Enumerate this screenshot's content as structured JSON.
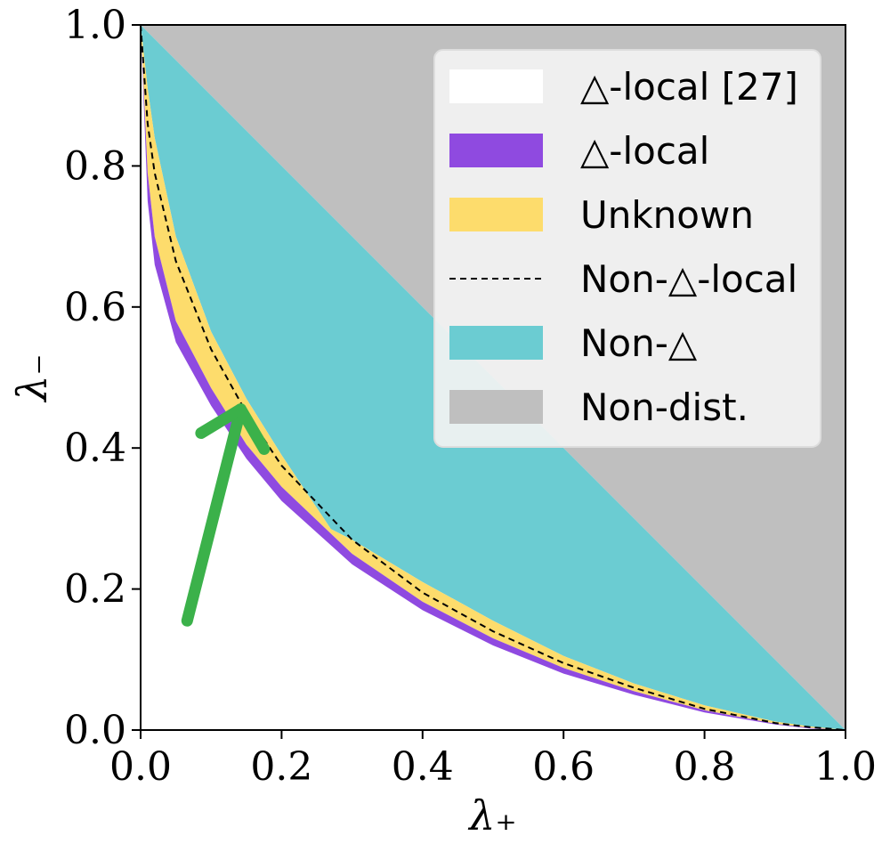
{
  "chart_data": {
    "type": "area",
    "xlabel": "λ₊",
    "ylabel": "λ₋",
    "xlim": [
      0,
      1
    ],
    "ylim": [
      0,
      1
    ],
    "xticks": [
      "0.0",
      "0.2",
      "0.4",
      "0.6",
      "0.8",
      "1.0"
    ],
    "yticks": [
      "0.0",
      "0.2",
      "0.4",
      "0.6",
      "0.8",
      "1.0"
    ],
    "legend_position": "top-right",
    "regions": {
      "purple_lower_boundary": [
        [
          0,
          1.0
        ],
        [
          0.01,
          0.75
        ],
        [
          0.02,
          0.66
        ],
        [
          0.05,
          0.55
        ],
        [
          0.1,
          0.46
        ],
        [
          0.15,
          0.385
        ],
        [
          0.2,
          0.325
        ],
        [
          0.3,
          0.235
        ],
        [
          0.4,
          0.17
        ],
        [
          0.5,
          0.12
        ],
        [
          0.6,
          0.08
        ],
        [
          0.7,
          0.05
        ],
        [
          0.8,
          0.025
        ],
        [
          0.9,
          0.008
        ],
        [
          0.95,
          0.002
        ],
        [
          1.0,
          0.0
        ]
      ],
      "purple_yellow_boundary": [
        [
          0,
          1.0
        ],
        [
          0.01,
          0.79
        ],
        [
          0.02,
          0.7
        ],
        [
          0.05,
          0.58
        ],
        [
          0.1,
          0.485
        ],
        [
          0.15,
          0.405
        ],
        [
          0.2,
          0.345
        ],
        [
          0.3,
          0.25
        ],
        [
          0.4,
          0.182
        ],
        [
          0.5,
          0.13
        ],
        [
          0.6,
          0.088
        ],
        [
          0.7,
          0.055
        ],
        [
          0.8,
          0.028
        ],
        [
          0.9,
          0.009
        ],
        [
          0.95,
          0.003
        ],
        [
          1.0,
          0.0
        ]
      ],
      "dashed_non_triangle_local": [
        [
          0,
          1.0
        ],
        [
          0.01,
          0.86
        ],
        [
          0.02,
          0.79
        ],
        [
          0.05,
          0.665
        ],
        [
          0.1,
          0.54
        ],
        [
          0.15,
          0.45
        ],
        [
          0.2,
          0.375
        ],
        [
          0.3,
          0.27
        ],
        [
          0.4,
          0.195
        ],
        [
          0.5,
          0.14
        ],
        [
          0.6,
          0.095
        ],
        [
          0.7,
          0.06
        ],
        [
          0.8,
          0.03
        ],
        [
          0.9,
          0.01
        ],
        [
          0.95,
          0.004
        ],
        [
          1.0,
          0.0
        ]
      ],
      "yellow_upper_boundary": [
        [
          0,
          1.0
        ],
        [
          0.01,
          0.91
        ],
        [
          0.02,
          0.84
        ],
        [
          0.05,
          0.7
        ],
        [
          0.1,
          0.565
        ],
        [
          0.15,
          0.47
        ],
        [
          0.2,
          0.39
        ],
        [
          0.27,
          0.285
        ],
        [
          0.3,
          0.27
        ],
        [
          0.4,
          0.21
        ],
        [
          0.5,
          0.155
        ],
        [
          0.6,
          0.105
        ],
        [
          0.7,
          0.066
        ],
        [
          0.8,
          0.035
        ],
        [
          0.9,
          0.012
        ],
        [
          0.95,
          0.005
        ],
        [
          1.0,
          0.0
        ]
      ],
      "non_distributable_boundary": [
        [
          0,
          1.0
        ],
        [
          1.0,
          0.0
        ]
      ]
    },
    "legend": [
      {
        "label": "△-local [27]",
        "color": "#ffffff",
        "kind": "patch"
      },
      {
        "label": "△-local",
        "color": "#8f4ae0",
        "kind": "patch"
      },
      {
        "label": "Unknown",
        "color": "#fddc6c",
        "kind": "patch"
      },
      {
        "label": "Non-△-local",
        "color": "#000000",
        "kind": "dashed"
      },
      {
        "label": "Non-△",
        "color": "#6bccd2",
        "kind": "patch"
      },
      {
        "label": "Non-dist.",
        "color": "#bfbfbf",
        "kind": "patch"
      }
    ],
    "annotation": {
      "kind": "arrow",
      "color": "#3bb14a",
      "from": [
        0.066,
        0.155
      ],
      "to": [
        0.142,
        0.455
      ]
    }
  }
}
